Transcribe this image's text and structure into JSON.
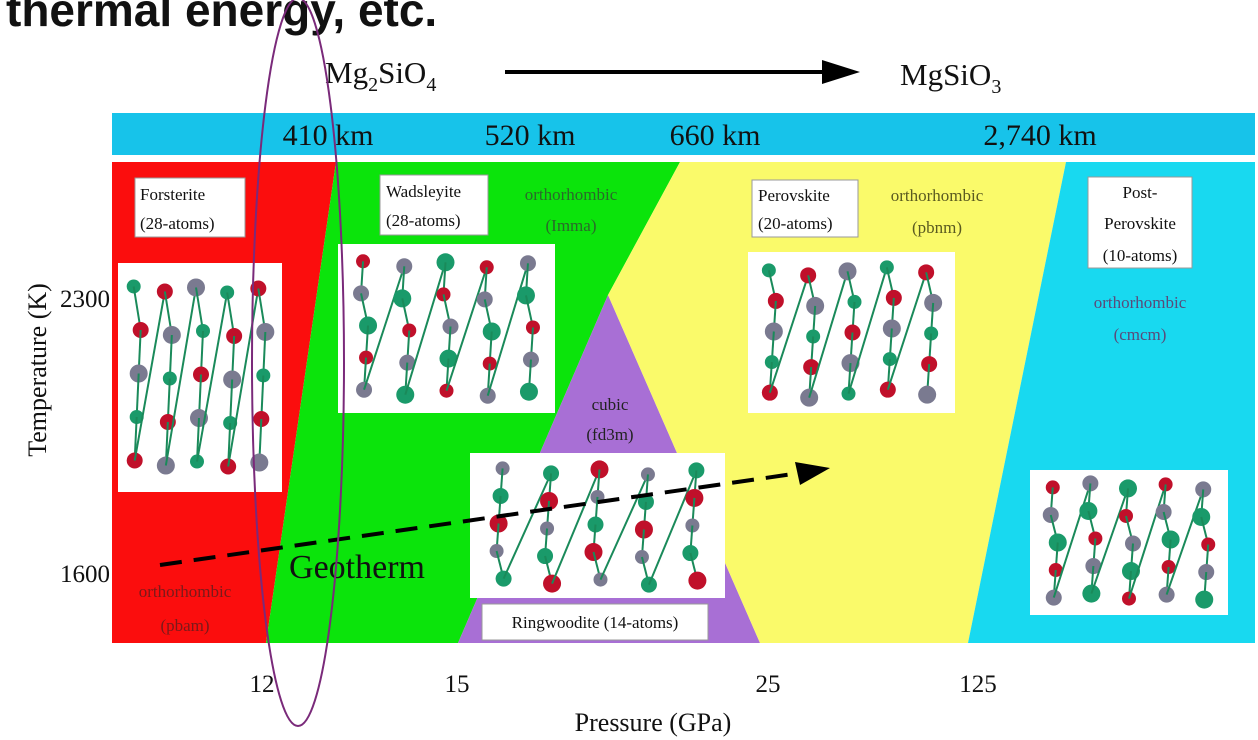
{
  "header": {
    "title": "thermal energy, etc."
  },
  "transition": {
    "from": [
      "Mg",
      "2",
      "SiO",
      "4"
    ],
    "to": [
      "MgSiO",
      "3"
    ]
  },
  "depths": [
    "410 km",
    "520 km",
    "660 km",
    "2,740 km"
  ],
  "phases": [
    {
      "lines": [
        "Forsterite",
        "(28-atoms)"
      ]
    },
    {
      "lines": [
        "Wadsleyite",
        "(28-atoms)"
      ]
    },
    {
      "lines": [
        "Ringwoodite (14-atoms)"
      ]
    },
    {
      "lines": [
        "Perovskite",
        "(20-atoms)"
      ]
    },
    {
      "lines": [
        "Post-",
        "Perovskite",
        "(10-atoms)"
      ]
    }
  ],
  "symmetries": [
    {
      "system": "orthorhombic",
      "group": "(pbam)"
    },
    {
      "system": "orthorhombic",
      "group": "(Imma)"
    },
    {
      "system": "cubic",
      "group": "(fd3m)"
    },
    {
      "system": "orthorhombic",
      "group": "(pbnm)"
    },
    {
      "system": "orthorhombic",
      "group": "(cmcm)"
    }
  ],
  "geotherm": "Geotherm",
  "axes": {
    "y": {
      "title": "Temperature (K)",
      "ticks": [
        2300,
        1600
      ]
    },
    "x": {
      "title": "Pressure (GPa)",
      "ticks": [
        12,
        15,
        25,
        125
      ]
    }
  }
}
